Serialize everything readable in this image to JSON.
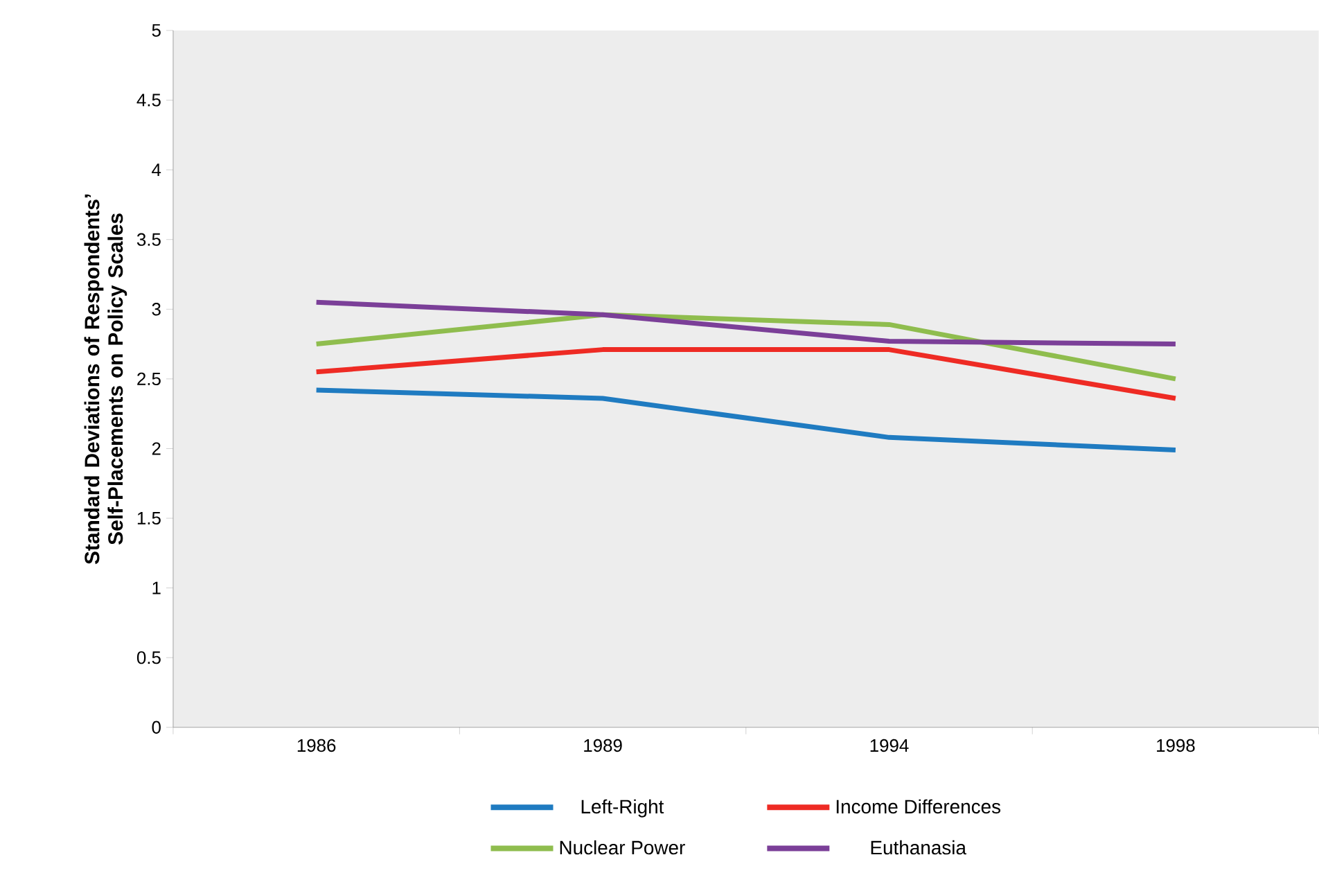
{
  "chart_data": {
    "type": "line",
    "ylabel": "Standard Deviations of Respondents’ Self-Placements on Policy Scales",
    "categories": [
      "1986",
      "1989",
      "1994",
      "1998"
    ],
    "series": [
      {
        "name": "Left-Right",
        "color": "#1f7bc1",
        "values": [
          2.42,
          2.36,
          2.08,
          1.99
        ]
      },
      {
        "name": "Income Differences",
        "color": "#ee2b24",
        "values": [
          2.55,
          2.71,
          2.71,
          2.36
        ]
      },
      {
        "name": "Nuclear Power",
        "color": "#8fbd4e",
        "values": [
          2.75,
          2.96,
          2.89,
          2.5
        ]
      },
      {
        "name": "Euthanasia",
        "color": "#7b3f98",
        "values": [
          3.05,
          2.96,
          2.77,
          2.75
        ]
      }
    ],
    "ylim": [
      0,
      5
    ],
    "yticks": [
      0,
      0.5,
      1,
      1.5,
      2,
      2.5,
      3,
      3.5,
      4,
      4.5,
      5
    ],
    "legend": "bottom",
    "marker": "none",
    "line_style": "solid",
    "grid": false
  }
}
